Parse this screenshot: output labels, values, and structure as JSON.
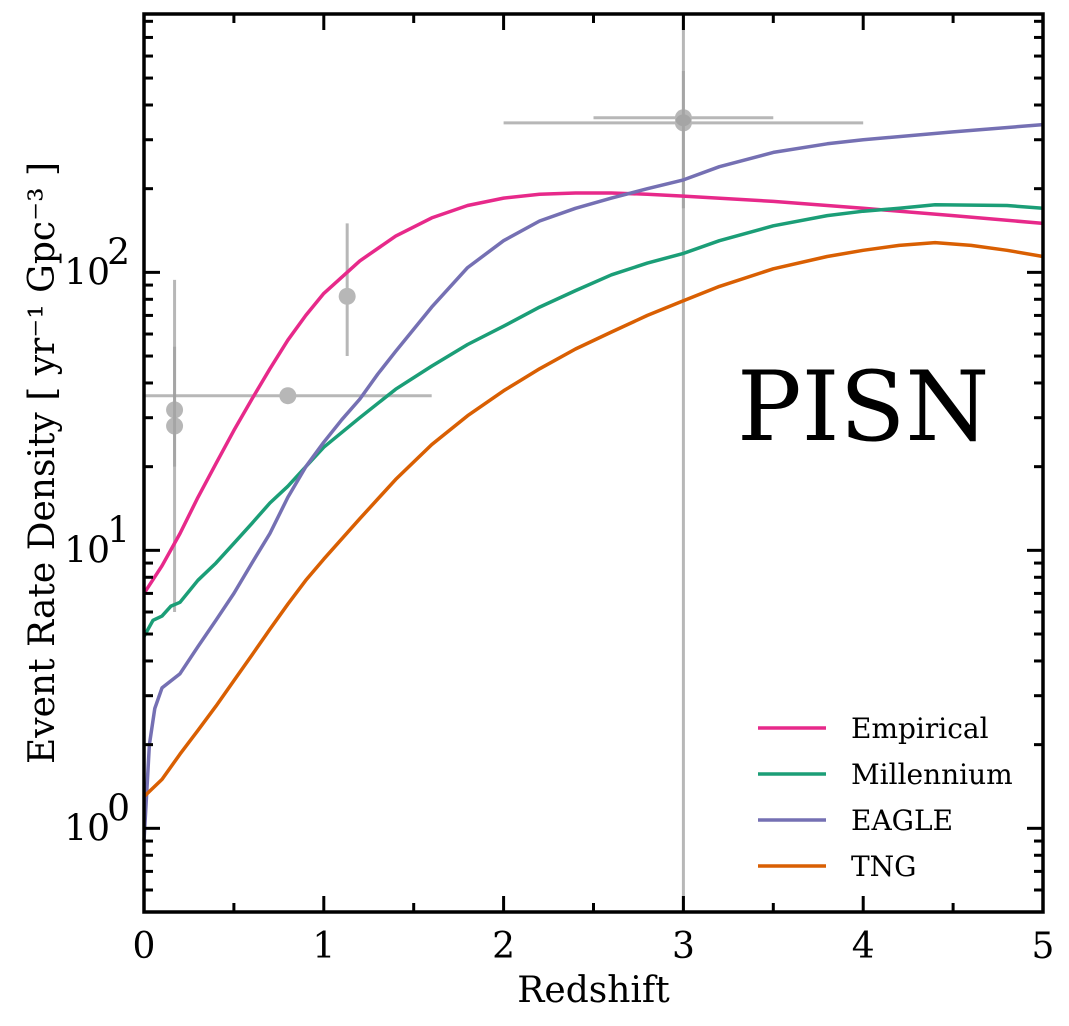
{
  "chart_data": {
    "type": "line",
    "title": "",
    "xlabel": "Redshift",
    "ylabel": "Event Rate Density [ yr⁻¹ Gpc⁻³ ]",
    "yscale": "log",
    "xlim": [
      0,
      5
    ],
    "ylim": [
      0.5,
      850
    ],
    "xticks": [
      0,
      1,
      2,
      3,
      4,
      5
    ],
    "xtick_labels": [
      "0",
      "1",
      "2",
      "3",
      "4",
      "5"
    ],
    "yticks": [
      1,
      10,
      100
    ],
    "ytick_labels": [
      {
        "base": "10",
        "exp": "0"
      },
      {
        "base": "10",
        "exp": "1"
      },
      {
        "base": "10",
        "exp": "2"
      }
    ],
    "annotation": "PISN",
    "legend_position": "lower right",
    "series": [
      {
        "name": "Empirical",
        "color": "#e7298a",
        "x": [
          0,
          0.1,
          0.2,
          0.3,
          0.4,
          0.5,
          0.6,
          0.7,
          0.8,
          0.9,
          1.0,
          1.2,
          1.4,
          1.6,
          1.8,
          2.0,
          2.2,
          2.4,
          2.6,
          2.8,
          3.0,
          3.5,
          4.0,
          4.5,
          5.0
        ],
        "y": [
          7.0,
          8.8,
          11.5,
          15.5,
          20.5,
          27.0,
          35,
          45,
          57,
          70,
          84,
          110,
          135,
          157,
          174,
          185,
          191,
          193,
          193,
          191,
          188,
          180,
          170,
          160,
          150
        ]
      },
      {
        "name": "Millennium",
        "color": "#1b9e77",
        "x": [
          0,
          0.05,
          0.1,
          0.15,
          0.2,
          0.3,
          0.4,
          0.5,
          0.6,
          0.7,
          0.8,
          0.9,
          1.0,
          1.2,
          1.4,
          1.6,
          1.8,
          2.0,
          2.2,
          2.4,
          2.6,
          2.8,
          3.0,
          3.2,
          3.5,
          3.8,
          4.0,
          4.2,
          4.4,
          4.8,
          5.0
        ],
        "y": [
          4.9,
          5.6,
          5.8,
          6.3,
          6.5,
          7.8,
          9.0,
          10.6,
          12.5,
          14.8,
          17,
          20,
          23.5,
          30,
          38,
          46,
          55,
          64,
          75,
          86,
          98,
          108,
          117,
          130,
          147,
          160,
          166,
          170,
          175,
          174,
          170
        ]
      },
      {
        "name": "EAGLE",
        "color": "#7570b3",
        "x": [
          0,
          0.03,
          0.06,
          0.1,
          0.2,
          0.3,
          0.4,
          0.5,
          0.6,
          0.7,
          0.8,
          0.9,
          1.0,
          1.1,
          1.2,
          1.3,
          1.4,
          1.6,
          1.8,
          2.0,
          2.2,
          2.4,
          2.6,
          2.8,
          3.0,
          3.2,
          3.5,
          3.8,
          4.0,
          4.5,
          5.0
        ],
        "y": [
          0.9,
          2.0,
          2.7,
          3.2,
          3.6,
          4.5,
          5.6,
          7.0,
          9.0,
          11.5,
          15.5,
          20,
          24.5,
          29.5,
          35,
          43,
          52,
          75,
          104,
          130,
          153,
          170,
          185,
          200,
          215,
          240,
          270,
          290,
          300,
          320,
          340
        ]
      },
      {
        "name": "TNG",
        "color": "#d95f02",
        "x": [
          0,
          0.1,
          0.2,
          0.3,
          0.4,
          0.5,
          0.6,
          0.7,
          0.8,
          0.9,
          1.0,
          1.2,
          1.4,
          1.6,
          1.8,
          2.0,
          2.2,
          2.4,
          2.6,
          2.8,
          3.0,
          3.2,
          3.5,
          3.8,
          4.0,
          4.2,
          4.4,
          4.6,
          4.8,
          5.0
        ],
        "y": [
          1.3,
          1.5,
          1.85,
          2.25,
          2.75,
          3.4,
          4.2,
          5.2,
          6.4,
          7.8,
          9.3,
          13,
          18,
          24,
          30.5,
          37.5,
          45,
          53,
          61,
          70,
          79,
          89,
          103,
          114,
          120,
          125,
          128,
          125,
          120,
          114
        ]
      }
    ],
    "error_points": [
      {
        "x": 0.17,
        "y": 32,
        "xerr": [
          0,
          0
        ],
        "yerr": [
          6,
          94
        ]
      },
      {
        "x": 0.17,
        "y": 28,
        "xerr": [
          0,
          0
        ],
        "yerr": [
          20,
          54
        ]
      },
      {
        "x": 0.8,
        "y": 36,
        "xerr": [
          0,
          1.6
        ],
        "yerr": [
          36,
          36
        ]
      },
      {
        "x": 1.13,
        "y": 82,
        "xerr": [
          1.13,
          1.13
        ],
        "yerr": [
          50,
          150
        ]
      },
      {
        "x": 3.0,
        "y": 360,
        "xerr": [
          2.5,
          3.5
        ],
        "yerr": [
          0.5,
          850
        ]
      },
      {
        "x": 3.0,
        "y": 345,
        "xerr": [
          2.0,
          4.0
        ],
        "yerr": [
          170,
          530
        ]
      }
    ],
    "error_color": "#a0a0a0"
  }
}
